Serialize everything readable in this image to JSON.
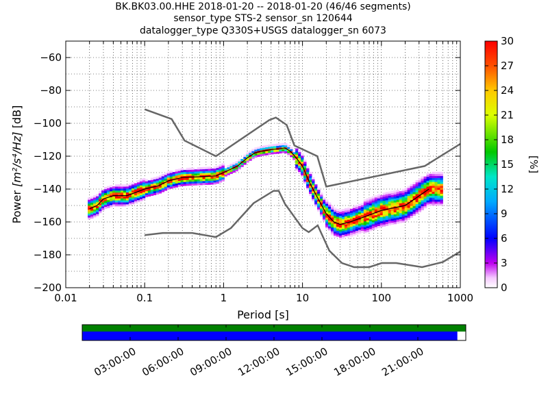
{
  "header": {
    "line1": "BK.BK03.00.HHE   2018-01-20 -- 2018-01-20  (46/46 segments)",
    "line2": "sensor_type STS-2 sensor_sn 120644",
    "line3": "datalogger_type Q330S+USGS datalogger_sn 6073"
  },
  "chart_data": {
    "type": "heatmap",
    "xlabel": "Period [s]",
    "ylabel_prefix": "Power ",
    "ylabel_units": "[m²/s⁴/Hz]",
    "ylabel_suffix": " [dB]",
    "x_scale": "log",
    "xlim": [
      0.01,
      1000
    ],
    "ylim": [
      -200,
      -50
    ],
    "grid": true,
    "x_ticks": [
      0.01,
      0.1,
      1,
      10,
      100,
      1000
    ],
    "x_tick_labels": [
      "0.01",
      "0.1",
      "1",
      "10",
      "100",
      "1000"
    ],
    "y_ticks": [
      -200,
      -180,
      -160,
      -140,
      -120,
      -100,
      -80,
      -60
    ],
    "y_tick_labels": [
      "−200",
      "−180",
      "−160",
      "−140",
      "−120",
      "−100",
      "−80",
      "−60"
    ],
    "colorbar": {
      "label": "[%]",
      "range": [
        0,
        30
      ],
      "ticks": [
        0,
        3,
        6,
        9,
        12,
        15,
        18,
        21,
        24,
        27,
        30
      ],
      "tick_labels": [
        "0",
        "3",
        "6",
        "9",
        "12",
        "15",
        "18",
        "21",
        "24",
        "27",
        "30"
      ]
    },
    "nhnm": {
      "name": "NHNM",
      "x": [
        0.1,
        0.22,
        0.32,
        0.8,
        3.8,
        4.6,
        6.3,
        7.9,
        15.4,
        20,
        354,
        1000
      ],
      "y": [
        -91.5,
        -97.4,
        -110.5,
        -120,
        -98,
        -96.5,
        -101,
        -113.5,
        -120,
        -138.5,
        -126,
        -112.5
      ]
    },
    "nlnm": {
      "name": "NLNM",
      "x": [
        0.1,
        0.17,
        0.4,
        0.8,
        1.24,
        2.4,
        4.3,
        5.0,
        6.0,
        10.0,
        12.0,
        15.6,
        21.9,
        31.6,
        45.0,
        70.0,
        101,
        154,
        328,
        600,
        1000
      ],
      "y": [
        -168,
        -166.7,
        -166.7,
        -169.2,
        -163.7,
        -148.6,
        -141.1,
        -141.1,
        -149,
        -163.8,
        -166.2,
        -162.1,
        -177.5,
        -185,
        -187.5,
        -187.5,
        -185,
        -185,
        -187.5,
        -184.4,
        -178
      ]
    },
    "mode": {
      "name": "mode",
      "x": [
        0.02,
        0.025,
        0.03,
        0.04,
        0.06,
        0.1,
        0.15,
        0.2,
        0.3,
        0.5,
        0.8,
        1.0,
        1.5,
        2.0,
        2.5,
        3.0,
        4.0,
        5.0,
        6.0,
        7.0,
        8.0,
        10.0,
        12.0,
        15.0,
        20.0,
        25.0,
        30.0,
        40.0,
        60.0,
        100.0,
        200.0,
        400.0
      ],
      "y": [
        -152,
        -150,
        -146,
        -144,
        -144,
        -140,
        -138,
        -135,
        -133,
        -132.5,
        -132,
        -130,
        -126,
        -121,
        -118,
        -117,
        -116,
        -115.5,
        -115,
        -117,
        -120,
        -126,
        -135,
        -144,
        -155,
        -160,
        -161.5,
        -160,
        -157,
        -153,
        -150,
        -140
      ]
    },
    "time_axis": {
      "tick_labels": [
        "03:00:00",
        "06:00:00",
        "09:00:00",
        "12:00:00",
        "15:00:00",
        "18:00:00",
        "21:00:00"
      ],
      "coverage_fraction": 0.978,
      "color_data": "#0000ff",
      "color_gaps": "#008000"
    }
  }
}
